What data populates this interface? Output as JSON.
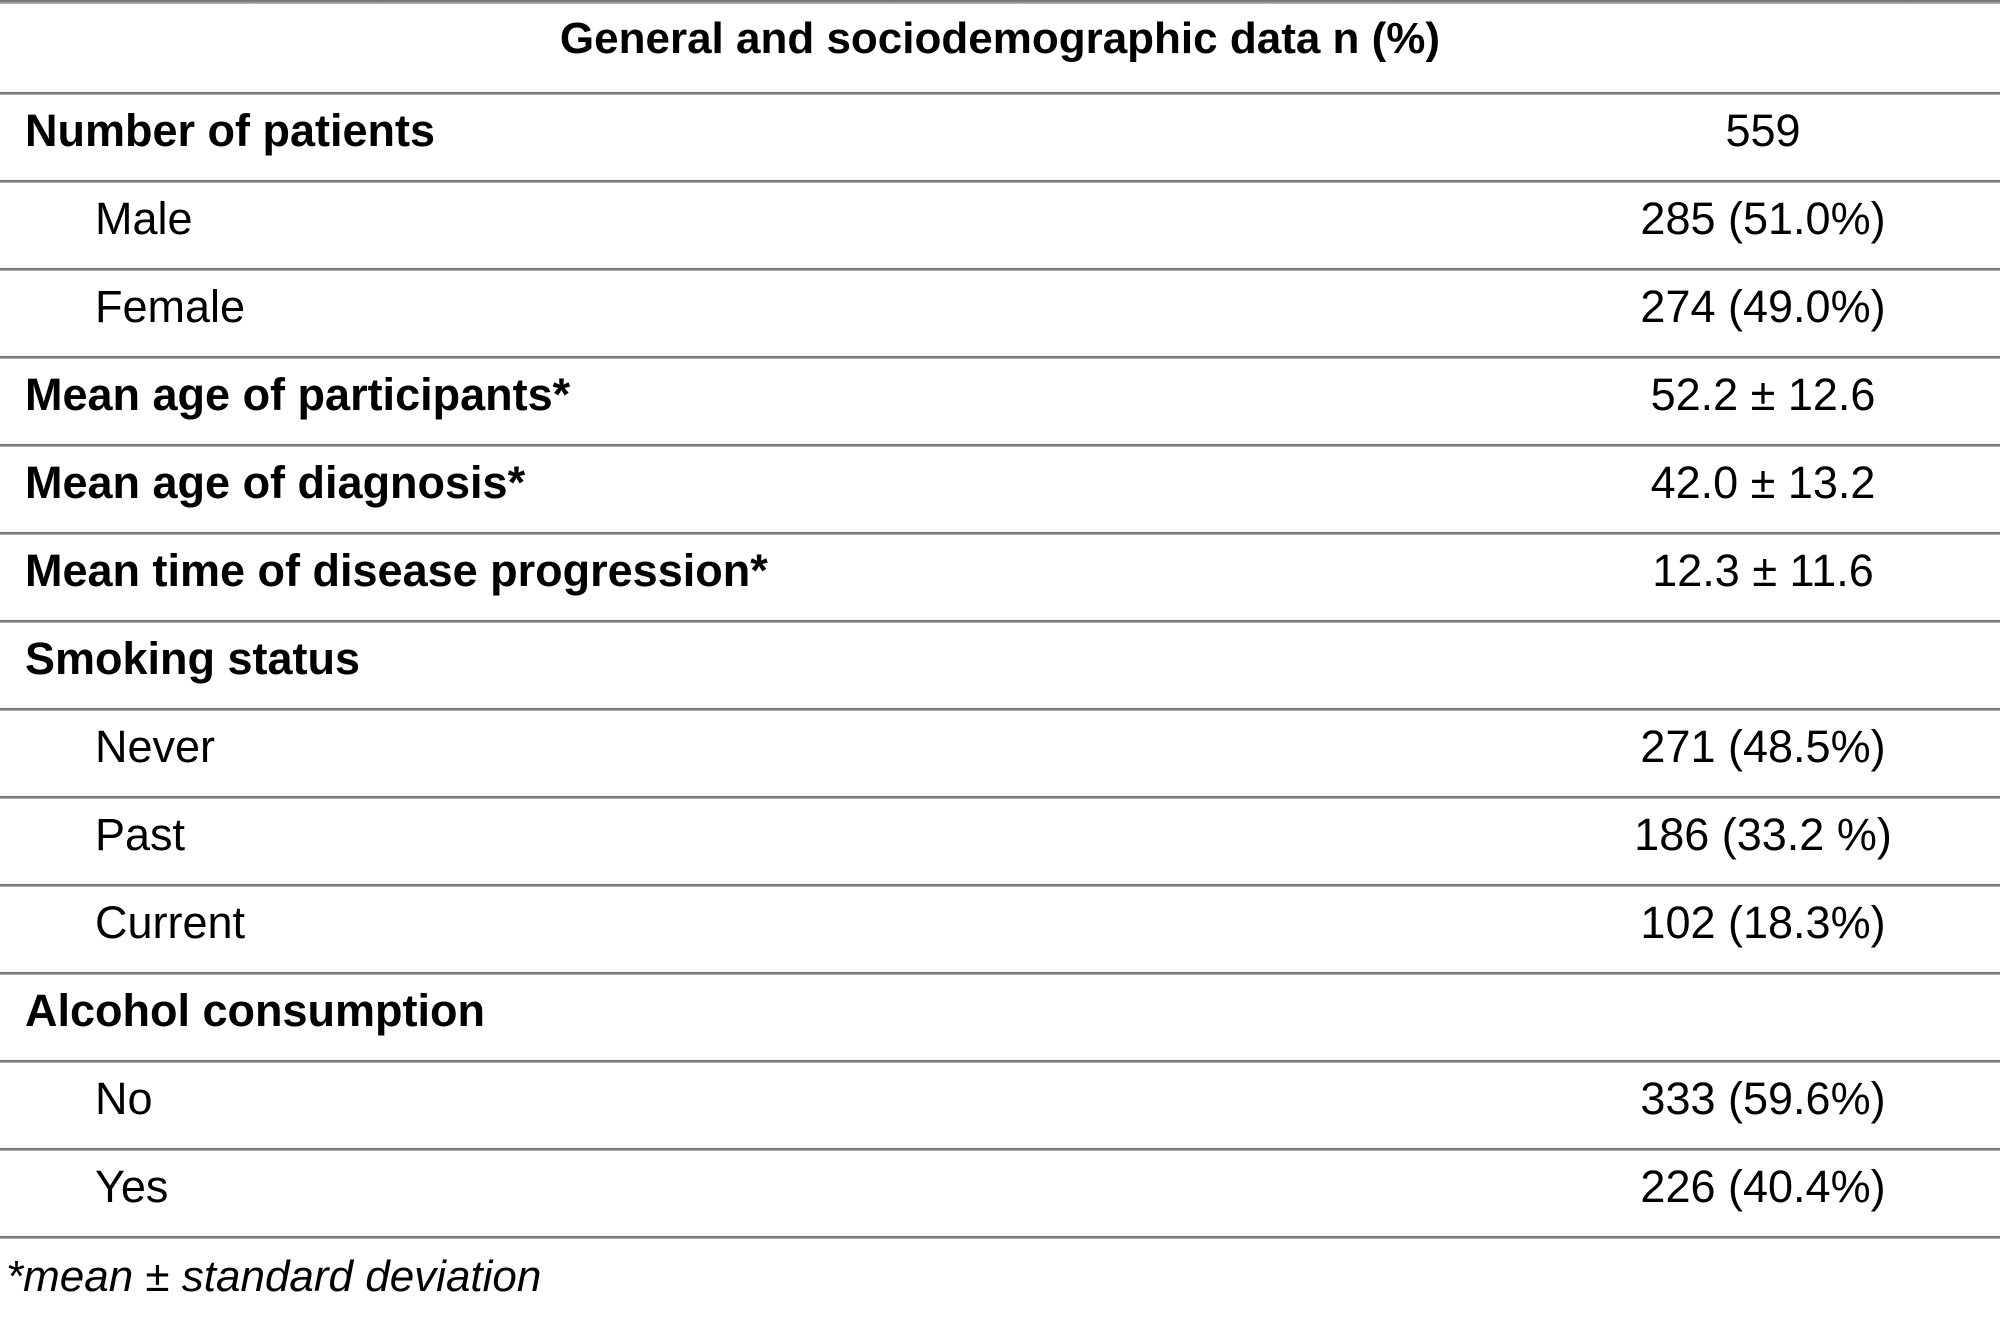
{
  "table": {
    "title": "General and sociodemographic data n (%)",
    "rows": [
      {
        "label": "Number of patients",
        "value": "559"
      },
      {
        "label": "Male",
        "value": "285 (51.0%)"
      },
      {
        "label": "Female",
        "value": "274 (49.0%)"
      },
      {
        "label": "Mean age of participants*",
        "value": "52.2 ± 12.6"
      },
      {
        "label": "Mean age of diagnosis*",
        "value": "42.0 ± 13.2"
      },
      {
        "label": "Mean time of disease progression*",
        "value": "12.3 ± 11.6"
      },
      {
        "label": "Smoking status",
        "value": ""
      },
      {
        "label": "Never",
        "value": "271 (48.5%)"
      },
      {
        "label": "Past",
        "value": "186 (33.2 %)"
      },
      {
        "label": "Current",
        "value": "102 (18.3%)"
      },
      {
        "label": "Alcohol consumption",
        "value": ""
      },
      {
        "label": "No",
        "value": "333 (59.6%)"
      },
      {
        "label": "Yes",
        "value": "226 (40.4%)"
      }
    ],
    "footnote": "*mean ± standard deviation"
  }
}
